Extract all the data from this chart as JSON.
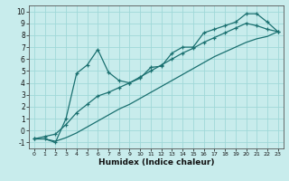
{
  "xlabel": "Humidex (Indice chaleur)",
  "bg_color": "#c8ecec",
  "line_color": "#1a7070",
  "grid_color": "#a0d8d8",
  "xlim": [
    -0.5,
    23.5
  ],
  "ylim": [
    -1.5,
    10.5
  ],
  "xticks": [
    0,
    1,
    2,
    3,
    4,
    5,
    6,
    7,
    8,
    9,
    10,
    11,
    12,
    13,
    14,
    15,
    16,
    17,
    18,
    19,
    20,
    21,
    22,
    23
  ],
  "yticks": [
    -1,
    0,
    1,
    2,
    3,
    4,
    5,
    6,
    7,
    8,
    9,
    10
  ],
  "curve_zigzag_x": [
    0,
    1,
    2,
    3,
    4,
    5,
    6,
    7,
    8,
    9,
    10,
    11,
    12,
    13,
    14,
    15,
    16,
    17,
    18,
    19,
    20,
    21,
    22,
    23
  ],
  "curve_zigzag_y": [
    -0.7,
    -0.7,
    -1.0,
    1.0,
    4.8,
    5.5,
    6.8,
    4.9,
    4.2,
    4.0,
    4.4,
    5.3,
    5.4,
    6.5,
    7.0,
    7.0,
    8.2,
    8.5,
    8.8,
    9.1,
    9.8,
    9.8,
    9.1,
    8.3
  ],
  "curve_upper_x": [
    0,
    1,
    2,
    3,
    4,
    5,
    6,
    7,
    8,
    9,
    10,
    11,
    12,
    13,
    14,
    15,
    16,
    17,
    18,
    19,
    20,
    21,
    22,
    23
  ],
  "curve_upper_y": [
    -0.7,
    -0.5,
    -0.3,
    0.5,
    1.5,
    2.2,
    2.9,
    3.2,
    3.6,
    4.0,
    4.5,
    5.0,
    5.5,
    6.0,
    6.5,
    6.9,
    7.4,
    7.8,
    8.2,
    8.6,
    9.0,
    8.8,
    8.5,
    8.3
  ],
  "curve_lower_x": [
    0,
    1,
    2,
    3,
    4,
    5,
    6,
    7,
    8,
    9,
    10,
    11,
    12,
    13,
    14,
    15,
    16,
    17,
    18,
    19,
    20,
    21,
    22,
    23
  ],
  "curve_lower_y": [
    -0.7,
    -0.7,
    -0.9,
    -0.6,
    -0.2,
    0.3,
    0.8,
    1.3,
    1.8,
    2.2,
    2.7,
    3.2,
    3.7,
    4.2,
    4.7,
    5.2,
    5.7,
    6.2,
    6.6,
    7.0,
    7.4,
    7.7,
    7.9,
    8.3
  ]
}
